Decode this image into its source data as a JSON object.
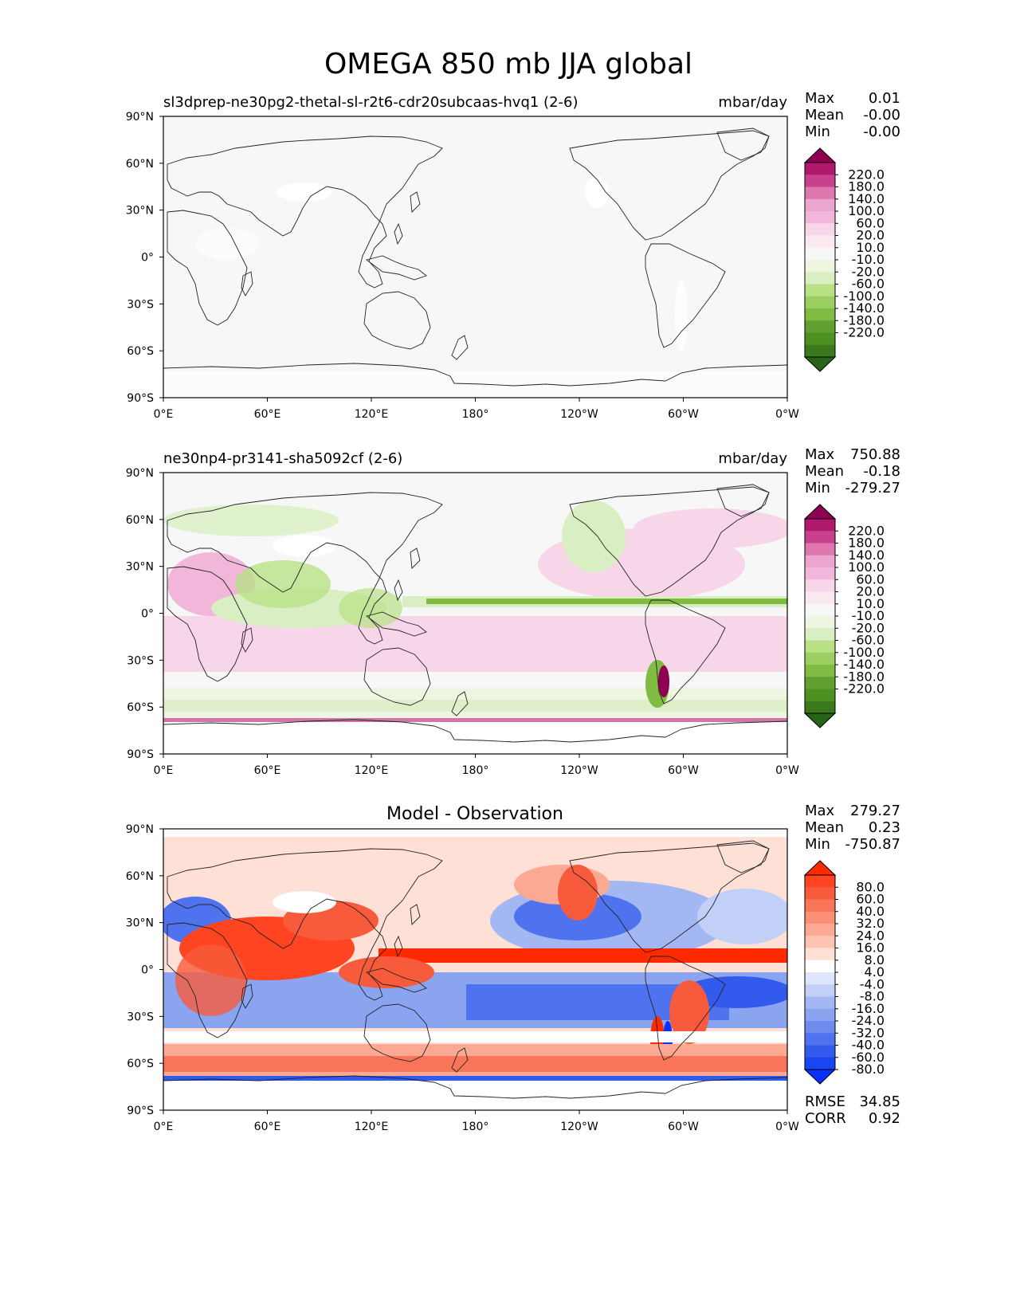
{
  "figure": {
    "title": "OMEGA 850 mb JJA global"
  },
  "lat_ticks": [
    "90°N",
    "60°N",
    "30°N",
    "0°",
    "30°S",
    "60°S",
    "90°S"
  ],
  "lon_ticks": [
    "0°E",
    "60°E",
    "120°E",
    "180°",
    "120°W",
    "60°W",
    "0°W"
  ],
  "chart_data": [
    {
      "type": "heatmap",
      "panel": "test",
      "title_left": "sl3dprep-ne30pg2-thetal-sl-r2t6-cdr20subcaas-hvq1 (2-6)",
      "title_right": "mbar/day",
      "stats": [
        {
          "label": "Max",
          "value": "0.01"
        },
        {
          "label": "Mean",
          "value": "-0.00"
        },
        {
          "label": "Min",
          "value": "-0.00"
        }
      ],
      "colorbar_levels": [
        "220.0",
        "180.0",
        "140.0",
        "100.0",
        "60.0",
        "20.0",
        "10.0",
        "-10.0",
        "-20.0",
        "-60.0",
        "-100.0",
        "-140.0",
        "-180.0",
        "-220.0"
      ],
      "colorbar_colors": [
        "#8e0152",
        "#b0196e",
        "#c8418d",
        "#de77ae",
        "#eba6cd",
        "#f1b6da",
        "#f7d6e9",
        "#fbe9f2",
        "#f7f7f7",
        "#eef6e2",
        "#d9efc3",
        "#b8e186",
        "#9ccf62",
        "#7fbc41",
        "#5fa030",
        "#4d9221",
        "#3a7a1c",
        "#276419"
      ],
      "field_description": "near-uniform field, values ~0 everywhere",
      "xlim": [
        0,
        360
      ],
      "ylim": [
        -90,
        90
      ]
    },
    {
      "type": "heatmap",
      "panel": "reference",
      "title_left": "ne30np4-pr3141-sha5092cf (2-6)",
      "title_right": "mbar/day",
      "stats": [
        {
          "label": "Max",
          "value": "750.88"
        },
        {
          "label": "Mean",
          "value": "-0.18"
        },
        {
          "label": "Min",
          "value": "-279.27"
        }
      ],
      "colorbar_levels": [
        "220.0",
        "180.0",
        "140.0",
        "100.0",
        "60.0",
        "20.0",
        "10.0",
        "-10.0",
        "-20.0",
        "-60.0",
        "-100.0",
        "-140.0",
        "-180.0",
        "-220.0"
      ],
      "colorbar_colors": [
        "#8e0152",
        "#b0196e",
        "#c8418d",
        "#de77ae",
        "#eba6cd",
        "#f1b6da",
        "#f7d6e9",
        "#fbe9f2",
        "#f7f7f7",
        "#eef6e2",
        "#d9efc3",
        "#b8e186",
        "#9ccf62",
        "#7fbc41",
        "#5fa030",
        "#4d9221",
        "#3a7a1c",
        "#276419"
      ],
      "xlim": [
        0,
        360
      ],
      "ylim": [
        -90,
        90
      ]
    },
    {
      "type": "heatmap",
      "panel": "difference",
      "title_center": "Model - Observation",
      "stats": [
        {
          "label": "Max",
          "value": "279.27"
        },
        {
          "label": "Mean",
          "value": "0.23"
        },
        {
          "label": "Min",
          "value": "-750.87"
        }
      ],
      "footer_stats": [
        {
          "label": "RMSE",
          "value": "34.85"
        },
        {
          "label": "CORR",
          "value": "0.92"
        }
      ],
      "colorbar_levels": [
        "80.0",
        "60.0",
        "40.0",
        "32.0",
        "24.0",
        "16.0",
        "8.0",
        "4.0",
        "-4.0",
        "-8.0",
        "-16.0",
        "-24.0",
        "-32.0",
        "-40.0",
        "-60.0",
        "-80.0"
      ],
      "colorbar_colors": [
        "#ff2a00",
        "#ff4422",
        "#f85b3c",
        "#f97559",
        "#fb8f76",
        "#fca994",
        "#fdc3b2",
        "#fee0d6",
        "#ffffff",
        "#dfe6fb",
        "#c2d0f8",
        "#a3b8f3",
        "#8aa4f0",
        "#6d8cee",
        "#4f73ee",
        "#325bee",
        "#1a45f2",
        "#0a30ff"
      ],
      "xlim": [
        0,
        360
      ],
      "ylim": [
        -90,
        90
      ]
    }
  ]
}
